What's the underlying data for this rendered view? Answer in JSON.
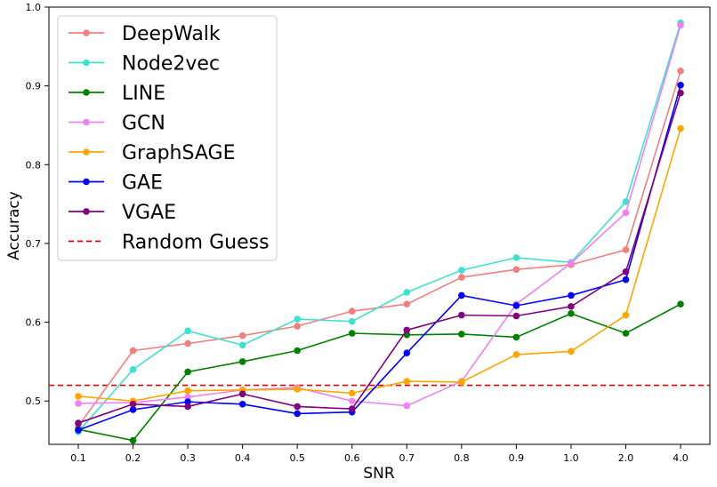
{
  "chart_data": {
    "type": "line",
    "categories": [
      "0.1",
      "0.2",
      "0.3",
      "0.4",
      "0.5",
      "0.6",
      "0.7",
      "0.8",
      "0.9",
      "1.0",
      "2.0",
      "4.0"
    ],
    "xlabel": "SNR",
    "ylabel": "Accuracy",
    "ylim": [
      0.445,
      1.0
    ],
    "yticks": [
      "0.5",
      "0.6",
      "0.7",
      "0.8",
      "0.9",
      "1.0"
    ],
    "grid": false,
    "legend_position": "top-left",
    "series": [
      {
        "name": "DeepWalk",
        "color": "#f08080",
        "values": [
          0.468,
          0.564,
          0.573,
          0.583,
          0.595,
          0.614,
          0.623,
          0.657,
          0.667,
          0.673,
          0.692,
          0.919
        ]
      },
      {
        "name": "Node2vec",
        "color": "#40e0d0",
        "values": [
          0.461,
          0.54,
          0.589,
          0.571,
          0.604,
          0.601,
          0.638,
          0.666,
          0.682,
          0.676,
          0.753,
          0.98
        ]
      },
      {
        "name": "LINE",
        "color": "#008000",
        "values": [
          0.464,
          0.45,
          0.537,
          0.55,
          0.564,
          0.586,
          0.584,
          0.585,
          0.581,
          0.611,
          0.586,
          0.623
        ]
      },
      {
        "name": "GCN",
        "color": "#ee82ee",
        "values": [
          0.497,
          0.498,
          0.505,
          0.514,
          0.517,
          0.5,
          0.494,
          0.525,
          0.623,
          0.675,
          0.739,
          0.977
        ]
      },
      {
        "name": "GraphSAGE",
        "color": "#ffa500",
        "values": [
          0.506,
          0.5,
          0.513,
          0.514,
          0.515,
          0.51,
          0.525,
          0.524,
          0.559,
          0.563,
          0.609,
          0.846
        ]
      },
      {
        "name": "GAE",
        "color": "#0000ff",
        "values": [
          0.463,
          0.489,
          0.499,
          0.496,
          0.484,
          0.486,
          0.561,
          0.634,
          0.621,
          0.634,
          0.654,
          0.901
        ]
      },
      {
        "name": "VGAE",
        "color": "#800080",
        "values": [
          0.472,
          0.496,
          0.493,
          0.509,
          0.493,
          0.49,
          0.59,
          0.609,
          0.608,
          0.62,
          0.664,
          0.891
        ]
      }
    ],
    "reference_line": {
      "name": "Random Guess",
      "value": 0.52,
      "color": "#e00000",
      "style": "dashed"
    }
  }
}
